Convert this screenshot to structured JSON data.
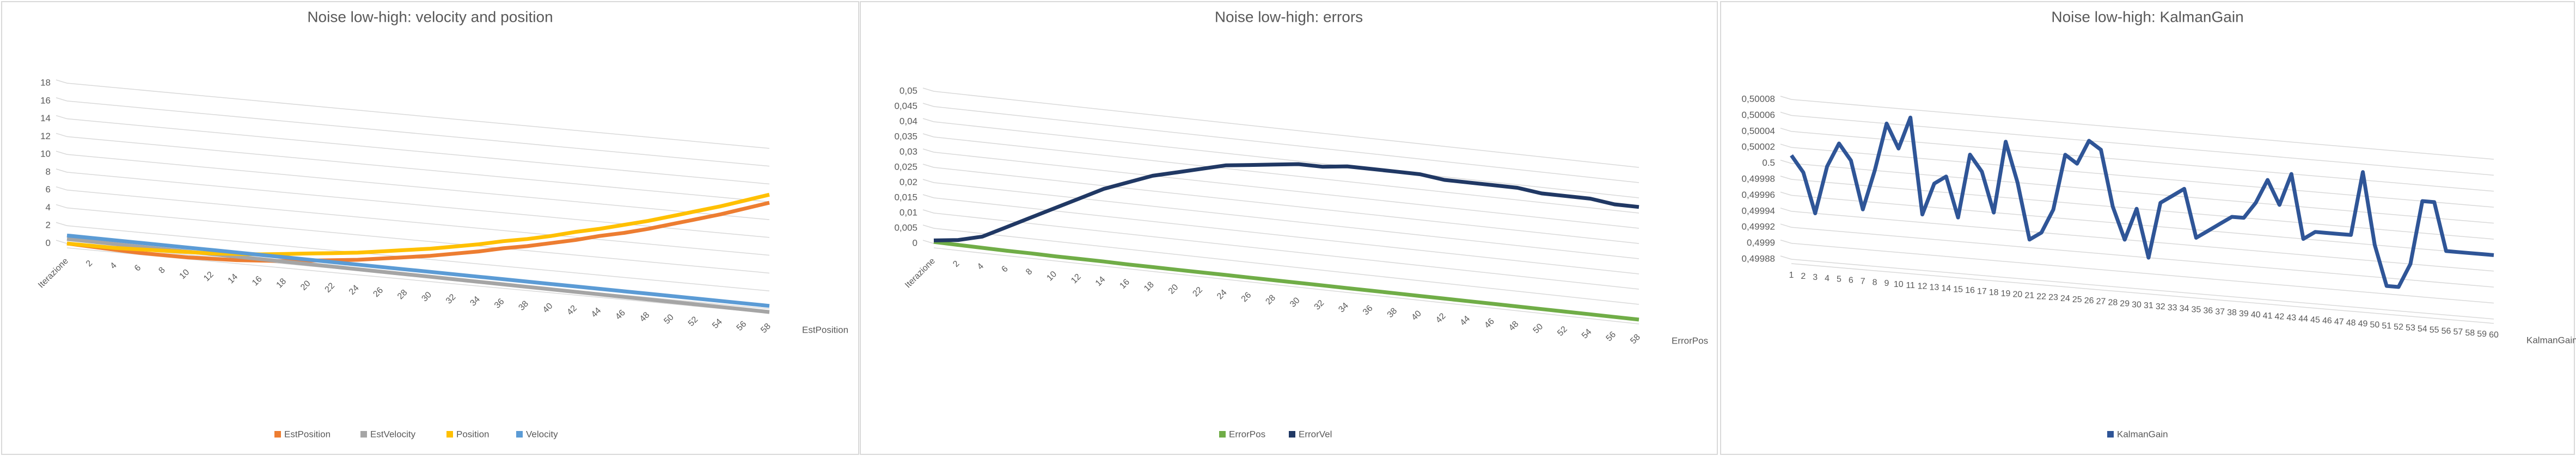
{
  "chart_data": [
    {
      "type": "line",
      "title": "Noise low-high: velocity and position",
      "categories": [
        "Iterazione",
        2,
        4,
        6,
        8,
        10,
        12,
        14,
        16,
        18,
        20,
        22,
        24,
        26,
        28,
        30,
        32,
        34,
        36,
        38,
        40,
        42,
        44,
        46,
        48,
        50,
        52,
        54,
        56,
        58
      ],
      "series": [
        {
          "name": "EstPosition",
          "color": "#ed7d31",
          "values": [
            0,
            -0.1,
            -0.2,
            -0.3,
            -0.3,
            -0.3,
            -0.2,
            -0.1,
            0.1,
            0.3,
            0.6,
            0.9,
            1.2,
            1.6,
            2.0,
            2.4,
            2.9,
            3.4,
            4.0,
            4.5,
            5.1,
            5.7,
            6.4,
            7.0,
            7.7,
            8.5,
            9.3,
            10.1,
            11.0,
            11.9
          ]
        },
        {
          "name": "EstVelocity",
          "color": "#a5a5a5",
          "values": [
            0.5,
            0.47,
            0.44,
            0.41,
            0.38,
            0.35,
            0.32,
            0.29,
            0.26,
            0.23,
            0.2,
            0.17,
            0.14,
            0.11,
            0.08,
            0.05,
            0.02,
            -0.01,
            -0.04,
            -0.07,
            -0.1,
            -0.13,
            -0.16,
            -0.19,
            -0.22,
            -0.25,
            -0.28,
            -0.31,
            -0.34,
            -0.37
          ]
        },
        {
          "name": "Position",
          "color": "#ffc000",
          "values": [
            0,
            0,
            0,
            0.1,
            0.2,
            0.3,
            0.4,
            0.6,
            0.8,
            1.1,
            1.4,
            1.7,
            2.0,
            2.4,
            2.8,
            3.2,
            3.7,
            4.2,
            4.8,
            5.3,
            5.9,
            6.6,
            7.2,
            7.9,
            8.6,
            9.4,
            10.2,
            11.0,
            11.9,
            12.8
          ]
        },
        {
          "name": "Velocity",
          "color": "#5b9bd5",
          "values": [
            0.9,
            0.88,
            0.86,
            0.84,
            0.82,
            0.8,
            0.78,
            0.76,
            0.74,
            0.72,
            0.7,
            0.68,
            0.66,
            0.64,
            0.62,
            0.6,
            0.58,
            0.56,
            0.54,
            0.52,
            0.5,
            0.48,
            0.46,
            0.44,
            0.42,
            0.4,
            0.38,
            0.36,
            0.34,
            0.32
          ]
        }
      ],
      "ylim": [
        0,
        18
      ],
      "yticks": [
        0,
        2,
        4,
        6,
        8,
        10,
        12,
        14,
        16,
        18
      ],
      "grid": true,
      "depth_label": "EstPosition",
      "legend": "bottom"
    },
    {
      "type": "line",
      "title": "Noise low-high: errors",
      "categories": [
        "Iterazione",
        2,
        4,
        6,
        8,
        10,
        12,
        14,
        16,
        18,
        20,
        22,
        24,
        26,
        28,
        30,
        32,
        34,
        36,
        38,
        40,
        42,
        44,
        46,
        48,
        50,
        52,
        54,
        56,
        58
      ],
      "series": [
        {
          "name": "ErrorPos",
          "color": "#70ad47",
          "values": [
            0.0005,
            0.0004,
            0.0003,
            0.0002,
            0.0002,
            0.0001,
            0.0001,
            0.0001,
            0,
            0,
            0,
            0,
            0,
            0,
            0,
            0,
            0,
            0,
            0,
            0,
            0,
            0,
            0,
            0,
            0,
            0,
            0,
            0,
            0,
            0
          ]
        },
        {
          "name": "ErrorVel",
          "color": "#203864",
          "values": [
            0.001,
            0.002,
            0.004,
            0.008,
            0.012,
            0.016,
            0.02,
            0.024,
            0.027,
            0.03,
            0.032,
            0.034,
            0.036,
            0.037,
            0.038,
            0.039,
            0.039,
            0.04,
            0.04,
            0.04,
            0.04,
            0.039,
            0.039,
            0.039,
            0.039,
            0.038,
            0.038,
            0.038,
            0.037,
            0.037
          ]
        }
      ],
      "ylim": [
        0,
        0.05
      ],
      "yticks": [
        0,
        {
          "value": 0.005,
          "label": "0,005"
        },
        {
          "value": 0.01,
          "label": "0,01"
        },
        {
          "value": 0.015,
          "label": "0,015"
        },
        {
          "value": 0.02,
          "label": "0,02"
        },
        {
          "value": 0.025,
          "label": "0,025"
        },
        {
          "value": 0.03,
          "label": "0,03"
        },
        {
          "value": 0.035,
          "label": "0,035"
        },
        {
          "value": 0.04,
          "label": "0,04"
        },
        {
          "value": 0.045,
          "label": "0,045"
        },
        {
          "value": 0.05,
          "label": "0,05"
        }
      ],
      "grid": true,
      "depth_label": "ErrorPos",
      "legend": "bottom"
    },
    {
      "type": "line",
      "title": "Noise low-high: KalmanGain",
      "categories": [
        1,
        2,
        3,
        4,
        5,
        6,
        7,
        8,
        9,
        10,
        11,
        12,
        13,
        14,
        15,
        16,
        17,
        18,
        19,
        20,
        21,
        22,
        23,
        24,
        25,
        26,
        27,
        28,
        29,
        30,
        31,
        32,
        33,
        34,
        35,
        36,
        37,
        38,
        39,
        40,
        41,
        42,
        43,
        44,
        45,
        46,
        47,
        48,
        49,
        50,
        51,
        52,
        53,
        54,
        55,
        56,
        57,
        58,
        59,
        60
      ],
      "series": [
        {
          "name": "KalmanGain",
          "color": "#2f5597",
          "values": [
            0.50001,
            0.49999,
            0.49994,
            0.5,
            0.50003,
            0.50001,
            0.49995,
            0.5,
            0.50006,
            0.50003,
            0.50007,
            0.49995,
            0.49999,
            0.5,
            0.49995,
            0.50003,
            0.50001,
            0.49996,
            0.50005,
            0.5,
            0.49993,
            0.49994,
            0.49997,
            0.50004,
            0.50003,
            0.50006,
            0.50005,
            0.49998,
            0.49994,
            0.49998,
            0.49992,
            0.49999,
            0.5,
            0.50001,
            0.49995,
            0.49996,
            0.49997,
            0.49998,
            0.49998,
            0.5,
            0.50003,
            0.5,
            0.50004,
            0.49996,
            0.49997,
            0.49997,
            0.49997,
            0.49997,
            0.50005,
            0.49996,
            0.49991,
            0.49991,
            0.49994,
            0.50002,
            0.50002,
            0.49996,
            0.49996,
            0.49996,
            0.49996,
            0.49996
          ]
        }
      ],
      "ylim": [
        0.49988,
        0.50008
      ],
      "yticks": [
        {
          "value": 0.49988,
          "label": "0,49988"
        },
        {
          "value": 0.4999,
          "label": "0,4999"
        },
        {
          "value": 0.49992,
          "label": "0,49992"
        },
        {
          "value": 0.49994,
          "label": "0,49994"
        },
        {
          "value": 0.49996,
          "label": "0,49996"
        },
        {
          "value": 0.49998,
          "label": "0,49998"
        },
        0.5,
        {
          "value": 0.50002,
          "label": "0,50002"
        },
        {
          "value": 0.50004,
          "label": "0,50004"
        },
        {
          "value": 0.50006,
          "label": "0,50006"
        },
        {
          "value": 0.50008,
          "label": "0,50008"
        }
      ],
      "grid": true,
      "depth_label": "KalmanGain",
      "legend": "bottom"
    }
  ]
}
